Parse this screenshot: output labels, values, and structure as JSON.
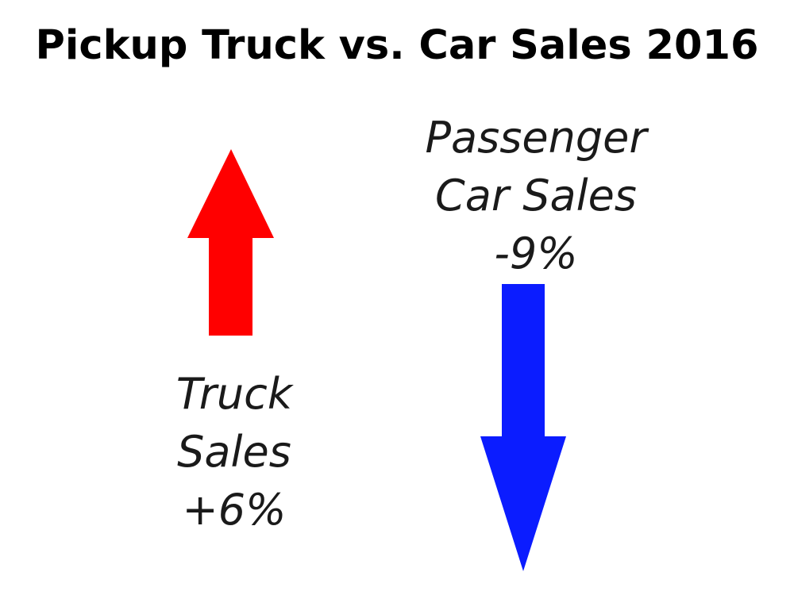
{
  "chart_data": {
    "type": "infographic",
    "title": "Pickup Truck vs. Car Sales 2016",
    "items": [
      {
        "name": "Truck Sales",
        "label_lines": [
          "Truck",
          "Sales",
          "+6%"
        ],
        "change_percent": 6,
        "direction": "up",
        "color": "#ff0000"
      },
      {
        "name": "Passenger Car Sales",
        "label_lines": [
          "Passenger",
          "Car Sales",
          "-9%"
        ],
        "change_percent": -9,
        "direction": "down",
        "color": "#0b1cff"
      }
    ]
  }
}
